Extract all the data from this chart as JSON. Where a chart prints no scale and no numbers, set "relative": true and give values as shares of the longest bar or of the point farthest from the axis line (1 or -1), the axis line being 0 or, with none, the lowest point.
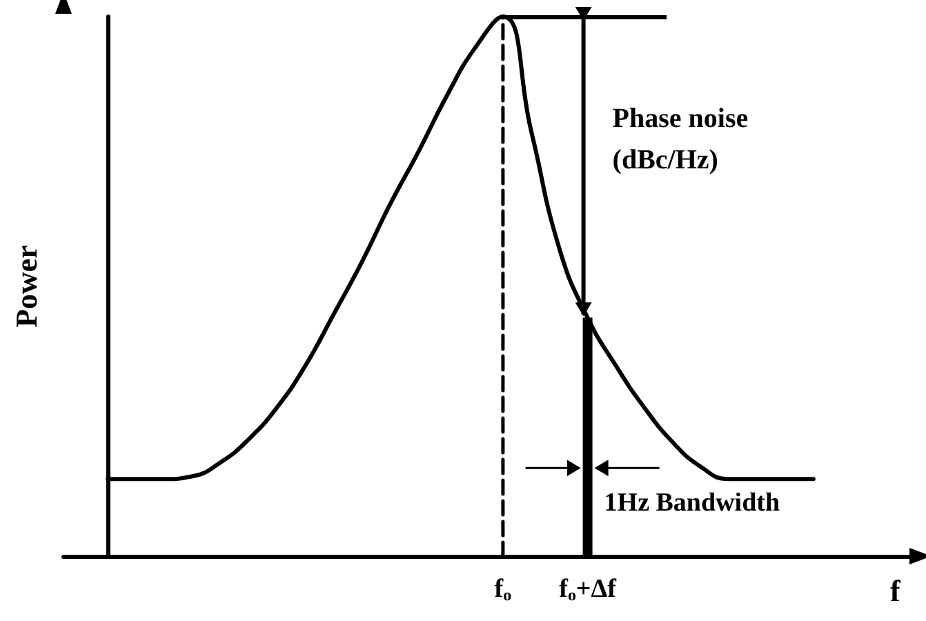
{
  "chart_data": {
    "type": "line",
    "relative": true,
    "ylabel": "Power",
    "xlabel": "f",
    "categories": [
      null,
      null,
      null,
      null,
      null,
      null,
      null,
      null,
      null,
      null,
      null,
      null,
      null,
      null,
      "f$_{o}$",
      null,
      null,
      "f$_{o}$+Δf",
      null,
      null,
      null,
      null,
      null,
      null,
      null,
      null
    ],
    "series": [
      {
        "color": "#000000",
        "values": [
          0.143,
          0.143,
          0.143,
          0.148,
          0.174,
          0.217,
          0.276,
          0.353,
          0.448,
          0.545,
          0.652,
          0.749,
          0.852,
          0.941,
          1,
          0.788,
          0.57,
          0.442,
          0.353,
          0.276,
          0.212,
          0.166,
          0.143,
          0.143,
          0.143,
          0.143
        ]
      },
      {
        "type": "bar",
        "color": "#000000",
        "values": [
          null,
          null,
          null,
          null,
          null,
          null,
          null,
          null,
          null,
          null,
          null,
          null,
          null,
          null,
          null,
          null,
          null,
          0.442,
          null,
          null,
          null,
          null,
          null,
          null,
          null,
          null
        ]
      },
      {
        "type": "line",
        "color": "#000000",
        "line_style": "dashed",
        "x": [
          "f$_{o}$",
          "f$_{o}$"
        ],
        "values": [
          0,
          1
        ]
      }
    ],
    "ref_lines": [
      {
        "axis": "y",
        "value": 1,
        "color": "#000000"
      }
    ],
    "annotations": [
      "Phase noise (dBc/Hz)",
      "1Hz Bandwidth"
    ],
    "tick_labels": "x",
    "grid": false,
    "marker": "none"
  }
}
